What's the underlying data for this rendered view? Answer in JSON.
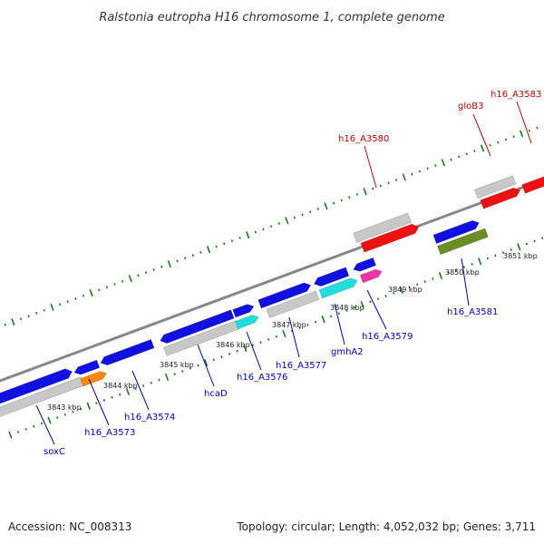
{
  "title": "Ralstonia eutropha H16 chromosome 1, complete genome",
  "footer": {
    "accession": "Accession: NC_008313",
    "topology": "Topology: circular; Length: 4,052,032 bp; Genes: 3,711"
  },
  "colors": {
    "backbone": "#888888",
    "tick": "#1a7a1a",
    "label_blue": "#0000cc",
    "label_red": "#cc0000",
    "gene_blue": "#1010e0",
    "gene_gray": "#c8c8c8",
    "gene_red": "#ee1111",
    "gene_cyan": "#22dddd",
    "gene_orange": "#ff8800",
    "gene_magenta": "#ee33aa",
    "gene_olive": "#6b8e23"
  },
  "scale_labels": [
    {
      "text": "3843 kbp",
      "kbp": 3843
    },
    {
      "text": "3844 kbp",
      "kbp": 3844
    },
    {
      "text": "3845 kbp",
      "kbp": 3845
    },
    {
      "text": "3846 kbp",
      "kbp": 3846
    },
    {
      "text": "3847 kbp",
      "kbp": 3847
    },
    {
      "text": "3848 kbp",
      "kbp": 3848
    },
    {
      "text": "3849 kbp",
      "kbp": 3849
    },
    {
      "text": "3850 kbp",
      "kbp": 3850
    },
    {
      "text": "3851 kbp",
      "kbp": 3851
    }
  ],
  "gene_labels": [
    {
      "name": "soxC",
      "color": "blue"
    },
    {
      "name": "h16_A3573",
      "color": "blue"
    },
    {
      "name": "h16_A3574",
      "color": "blue"
    },
    {
      "name": "hcaD",
      "color": "blue"
    },
    {
      "name": "h16_A3576",
      "color": "blue"
    },
    {
      "name": "h16_A3577",
      "color": "blue"
    },
    {
      "name": "gmhA2",
      "color": "blue"
    },
    {
      "name": "h16_A3579",
      "color": "blue"
    },
    {
      "name": "h16_A3581",
      "color": "blue"
    },
    {
      "name": "h16_A3580",
      "color": "red"
    },
    {
      "name": "gloB3",
      "color": "red"
    },
    {
      "name": "h16_A3583",
      "color": "red"
    }
  ]
}
